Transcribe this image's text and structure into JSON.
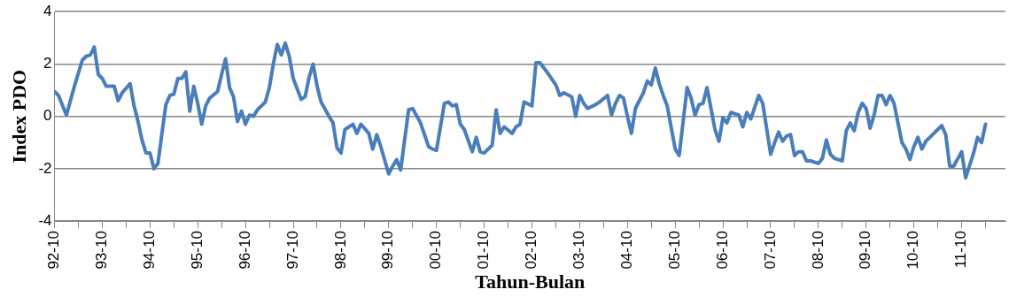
{
  "chart_data": {
    "type": "line",
    "xlabel": "Tahun-Bulan",
    "ylabel": "Index PDO",
    "series": [
      {
        "color": "#4a7ebb",
        "x": [
          "1992-10",
          "1992-11",
          "1993-01",
          "1993-03",
          "1993-05",
          "1993-06",
          "1993-07",
          "1993-08",
          "1993-09",
          "1993-10",
          "1993-11",
          "1994-01",
          "1994-02",
          "1994-03",
          "1994-05",
          "1994-06",
          "1994-07",
          "1994-08",
          "1994-09",
          "1994-10",
          "1994-11",
          "1994-12",
          "1995-01",
          "1995-02",
          "1995-03",
          "1995-04",
          "1995-05",
          "1995-06",
          "1995-07",
          "1995-08",
          "1995-09",
          "1995-10",
          "1995-11",
          "1995-12",
          "1996-01",
          "1996-03",
          "1996-04",
          "1996-05",
          "1996-06",
          "1996-07",
          "1996-08",
          "1996-09",
          "1996-10",
          "1996-11",
          "1996-12",
          "1997-01",
          "1997-03",
          "1997-04",
          "1997-05",
          "1997-06",
          "1997-07",
          "1997-08",
          "1997-09",
          "1997-10",
          "1997-12",
          "1998-01",
          "1998-02",
          "1998-03",
          "1998-04",
          "1998-05",
          "1998-07",
          "1998-08",
          "1998-09",
          "1998-10",
          "1998-11",
          "1999-01",
          "1999-02",
          "1999-03",
          "1999-05",
          "1999-06",
          "1999-07",
          "1999-08",
          "1999-10",
          "1999-11",
          "1999-12",
          "2000-01",
          "2000-03",
          "2000-04",
          "2000-06",
          "2000-08",
          "2000-09",
          "2000-10",
          "2000-12",
          "2001-01",
          "2001-02",
          "2001-03",
          "2001-04",
          "2001-05",
          "2001-07",
          "2001-08",
          "2001-09",
          "2001-10",
          "2001-12",
          "2002-01",
          "2002-02",
          "2002-03",
          "2002-05",
          "2002-06",
          "2002-07",
          "2002-08",
          "2002-10",
          "2002-11",
          "2002-12",
          "2003-02",
          "2003-04",
          "2003-05",
          "2003-06",
          "2003-08",
          "2003-09",
          "2003-10",
          "2003-11",
          "2003-12",
          "2004-02",
          "2004-03",
          "2004-05",
          "2004-06",
          "2004-07",
          "2004-08",
          "2004-09",
          "2004-10",
          "2004-11",
          "2004-12",
          "2005-02",
          "2005-03",
          "2005-04",
          "2005-05",
          "2005-06",
          "2005-07",
          "2005-08",
          "2005-10",
          "2005-11",
          "2006-01",
          "2006-02",
          "2006-03",
          "2006-04",
          "2006-05",
          "2006-06",
          "2006-08",
          "2006-09",
          "2006-10",
          "2006-11",
          "2006-12",
          "2007-02",
          "2007-03",
          "2007-04",
          "2007-05",
          "2007-07",
          "2007-08",
          "2007-10",
          "2007-11",
          "2007-12",
          "2008-01",
          "2008-02",
          "2008-03",
          "2008-04",
          "2008-05",
          "2008-06",
          "2008-07",
          "2008-08",
          "2008-10",
          "2008-11",
          "2008-12",
          "2009-01",
          "2009-02",
          "2009-04",
          "2009-05",
          "2009-06",
          "2009-07",
          "2009-08",
          "2009-09",
          "2009-10",
          "2009-11",
          "2009-12",
          "2010-01",
          "2010-02",
          "2010-03",
          "2010-04",
          "2010-05",
          "2010-07",
          "2010-08",
          "2010-09",
          "2010-10",
          "2010-11",
          "2010-12",
          "2011-01",
          "2011-02",
          "2011-04",
          "2011-05",
          "2011-06",
          "2011-07",
          "2011-08",
          "2011-10",
          "2011-11",
          "2012-01",
          "2012-02",
          "2012-03",
          "2012-04"
        ],
        "values": [
          0.95,
          0.8,
          0.05,
          1.15,
          2.15,
          2.3,
          2.35,
          2.65,
          1.6,
          1.45,
          1.15,
          1.15,
          0.6,
          0.9,
          1.25,
          0.4,
          -0.2,
          -0.9,
          -1.4,
          -1.4,
          -2.0,
          -1.8,
          -0.65,
          0.45,
          0.8,
          0.85,
          1.45,
          1.45,
          1.7,
          0.2,
          1.15,
          0.5,
          -0.3,
          0.4,
          0.7,
          0.95,
          1.6,
          2.2,
          1.1,
          0.75,
          -0.2,
          0.2,
          -0.3,
          0.05,
          0,
          0.25,
          0.55,
          1.1,
          2.0,
          2.75,
          2.35,
          2.8,
          2.3,
          1.45,
          0.65,
          0.75,
          1.5,
          2.0,
          1.15,
          0.55,
          0,
          -0.25,
          -1.2,
          -1.4,
          -0.5,
          -0.3,
          -0.65,
          -0.3,
          -0.65,
          -1.25,
          -0.7,
          -1.15,
          -2.2,
          -1.9,
          -1.65,
          -2.05,
          0.25,
          0.3,
          -0.25,
          -1.15,
          -1.25,
          -1.3,
          0.5,
          0.55,
          0.4,
          0.45,
          -0.3,
          -0.5,
          -1.35,
          -0.8,
          -1.35,
          -1.4,
          -1.1,
          0.25,
          -0.65,
          -0.4,
          -0.65,
          -0.4,
          -0.3,
          0.55,
          0.4,
          2.05,
          2.05,
          1.65,
          1.2,
          0.8,
          0.9,
          0.75,
          0,
          0.8,
          0.5,
          0.3,
          0.45,
          0.55,
          0.8,
          0.05,
          0.5,
          0.8,
          0.7,
          0,
          -0.65,
          0.3,
          0.9,
          1.35,
          1.2,
          1.85,
          1.25,
          0.8,
          0.4,
          -1.25,
          -1.5,
          1.1,
          0.7,
          0.05,
          0.45,
          0.5,
          1.1,
          -0.5,
          -0.95,
          -0.05,
          -0.25,
          0.15,
          0.05,
          -0.4,
          0.15,
          -0.1,
          0.8,
          0.5,
          -1.45,
          -1.0,
          -0.6,
          -0.95,
          -0.75,
          -0.7,
          -1.5,
          -1.35,
          -1.35,
          -1.7,
          -1.7,
          -1.8,
          -1.6,
          -0.9,
          -1.45,
          -1.6,
          -1.7,
          -0.55,
          -0.25,
          -0.55,
          0.15,
          0.5,
          0.3,
          -0.45,
          0.05,
          0.8,
          0.8,
          0.45,
          0.8,
          0.5,
          -1.0,
          -1.25,
          -1.65,
          -1.15,
          -0.8,
          -1.25,
          -0.95,
          -0.8,
          -0.5,
          -0.35,
          -0.7,
          -1.9,
          -1.9,
          -1.35,
          -2.35,
          -1.4,
          -0.8,
          -1.0,
          -0.3
        ]
      }
    ],
    "xlim": [
      "1992-10",
      "2012-09"
    ],
    "xticks": [
      {
        "value": "1992-10",
        "label": "92-10"
      },
      {
        "value": "1993-04",
        "label": null
      },
      {
        "value": "1993-10",
        "label": "93-10"
      },
      {
        "value": "1994-04",
        "label": null
      },
      {
        "value": "1994-10",
        "label": "94-10"
      },
      {
        "value": "1995-04",
        "label": null
      },
      {
        "value": "1995-10",
        "label": "95-10"
      },
      {
        "value": "1996-04",
        "label": null
      },
      {
        "value": "1996-10",
        "label": "96-10"
      },
      {
        "value": "1997-04",
        "label": null
      },
      {
        "value": "1997-10",
        "label": "97-10"
      },
      {
        "value": "1998-04",
        "label": null
      },
      {
        "value": "1998-10",
        "label": "98-10"
      },
      {
        "value": "1999-04",
        "label": null
      },
      {
        "value": "1999-10",
        "label": "99-10"
      },
      {
        "value": "2000-04",
        "label": null
      },
      {
        "value": "2000-10",
        "label": "00-10"
      },
      {
        "value": "2001-04",
        "label": null
      },
      {
        "value": "2001-10",
        "label": "01-10"
      },
      {
        "value": "2002-04",
        "label": null
      },
      {
        "value": "2002-10",
        "label": "02-10"
      },
      {
        "value": "2003-04",
        "label": null
      },
      {
        "value": "2003-10",
        "label": "03-10"
      },
      {
        "value": "2004-04",
        "label": null
      },
      {
        "value": "2004-10",
        "label": "04-10"
      },
      {
        "value": "2005-04",
        "label": null
      },
      {
        "value": "2005-10",
        "label": "05-10"
      },
      {
        "value": "2006-04",
        "label": null
      },
      {
        "value": "2006-10",
        "label": "06-10"
      },
      {
        "value": "2007-04",
        "label": null
      },
      {
        "value": "2007-10",
        "label": "07-10"
      },
      {
        "value": "2008-04",
        "label": null
      },
      {
        "value": "2008-10",
        "label": "08-10"
      },
      {
        "value": "2009-04",
        "label": null
      },
      {
        "value": "2009-10",
        "label": "09-10"
      },
      {
        "value": "2010-04",
        "label": null
      },
      {
        "value": "2010-10",
        "label": "10-10"
      },
      {
        "value": "2011-04",
        "label": null
      },
      {
        "value": "2011-10",
        "label": "11-10"
      },
      {
        "value": "2012-04",
        "label": null
      }
    ],
    "ylim": [
      -4,
      4
    ],
    "yticks": [
      -4,
      -2,
      0,
      2,
      4
    ],
    "grid": "y",
    "legend": false,
    "marker": "none",
    "line_style": "solid"
  }
}
